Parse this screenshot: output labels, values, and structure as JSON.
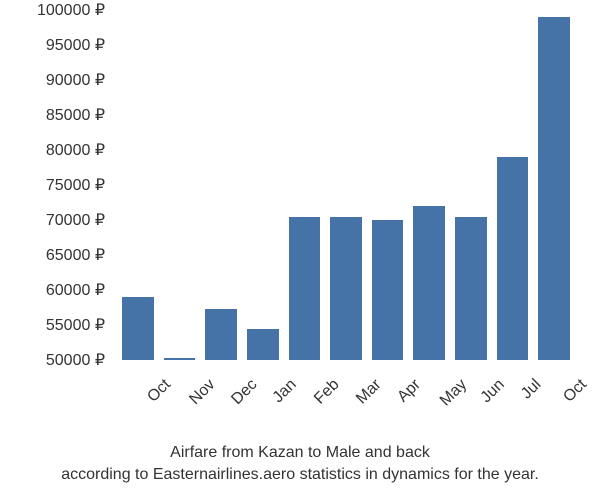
{
  "chart": {
    "type": "bar",
    "background_color": "#ffffff",
    "bar_color": "#4573a7",
    "text_color": "#333333",
    "label_fontsize": 16,
    "caption_fontsize": 16,
    "x_label_rotation_deg": -45,
    "bar_width_ratio": 0.7,
    "ylim": [
      50000,
      100000
    ],
    "ytick_step": 5000,
    "y_tick_labels": [
      "50000 ₽",
      "55000 ₽",
      "60000 ₽",
      "65000 ₽",
      "70000 ₽",
      "75000 ₽",
      "80000 ₽",
      "85000 ₽",
      "90000 ₽",
      "95000 ₽",
      "100000 ₽"
    ],
    "y_tick_values": [
      50000,
      55000,
      60000,
      65000,
      70000,
      75000,
      80000,
      85000,
      90000,
      95000,
      100000
    ],
    "categories": [
      "Oct",
      "Nov",
      "Dec",
      "Jan",
      "Feb",
      "Mar",
      "Apr",
      "May",
      "Jun",
      "Jul",
      "Oct"
    ],
    "values": [
      59000,
      50300,
      57300,
      54500,
      70500,
      70500,
      70000,
      72000,
      70500,
      79000,
      99000
    ],
    "caption_line1": "Airfare from Kazan to Male and back",
    "caption_line2": "according to Easternairlines.aero statistics in dynamics for the year."
  }
}
